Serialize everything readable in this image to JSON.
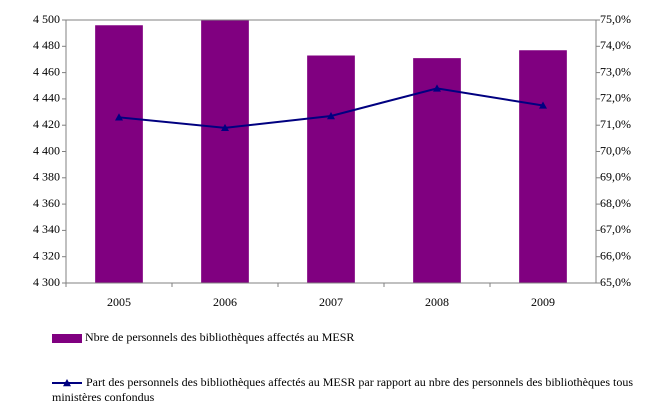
{
  "chart_data": {
    "type": "bar-line",
    "categories": [
      "2005",
      "2006",
      "2007",
      "2008",
      "2009"
    ],
    "series": [
      {
        "name": "Nbre de personnels des bibliothèques affectés au MESR",
        "type": "bar",
        "color": "#800080",
        "values": [
          4496,
          4500,
          4473,
          4471,
          4477
        ]
      },
      {
        "name": "Part des personnels des bibliothèques affectés au MESR par rapport au nbre des personnels des bibliothèques tous ministères confondus",
        "type": "line",
        "axis": "y2",
        "color": "#000080",
        "values": [
          71.3,
          70.9,
          71.35,
          72.4,
          71.75
        ]
      }
    ],
    "ylim": [
      4300,
      4500
    ],
    "yticks": [
      {
        "value": 4300,
        "label": "4 300"
      },
      {
        "value": 4320,
        "label": "4 320"
      },
      {
        "value": 4340,
        "label": "4 340"
      },
      {
        "value": 4360,
        "label": "4 360"
      },
      {
        "value": 4380,
        "label": "4 380"
      },
      {
        "value": 4400,
        "label": "4 400"
      },
      {
        "value": 4420,
        "label": "4 420"
      },
      {
        "value": 4440,
        "label": "4 440"
      },
      {
        "value": 4460,
        "label": "4 460"
      },
      {
        "value": 4480,
        "label": "4 480"
      },
      {
        "value": 4500,
        "label": "4 500"
      }
    ],
    "y2lim": [
      65,
      75
    ],
    "y2ticks": [
      {
        "value": 65,
        "label": "65,0%"
      },
      {
        "value": 66,
        "label": "66,0%"
      },
      {
        "value": 67,
        "label": "67,0%"
      },
      {
        "value": 68,
        "label": "68,0%"
      },
      {
        "value": 69,
        "label": "69,0%"
      },
      {
        "value": 70,
        "label": "70,0%"
      },
      {
        "value": 71,
        "label": "71,0%"
      },
      {
        "value": 72,
        "label": "72,0%"
      },
      {
        "value": 73,
        "label": "73,0%"
      },
      {
        "value": 74,
        "label": "74,0%"
      },
      {
        "value": 75,
        "label": "75,0%"
      }
    ],
    "legend": "bottom"
  }
}
